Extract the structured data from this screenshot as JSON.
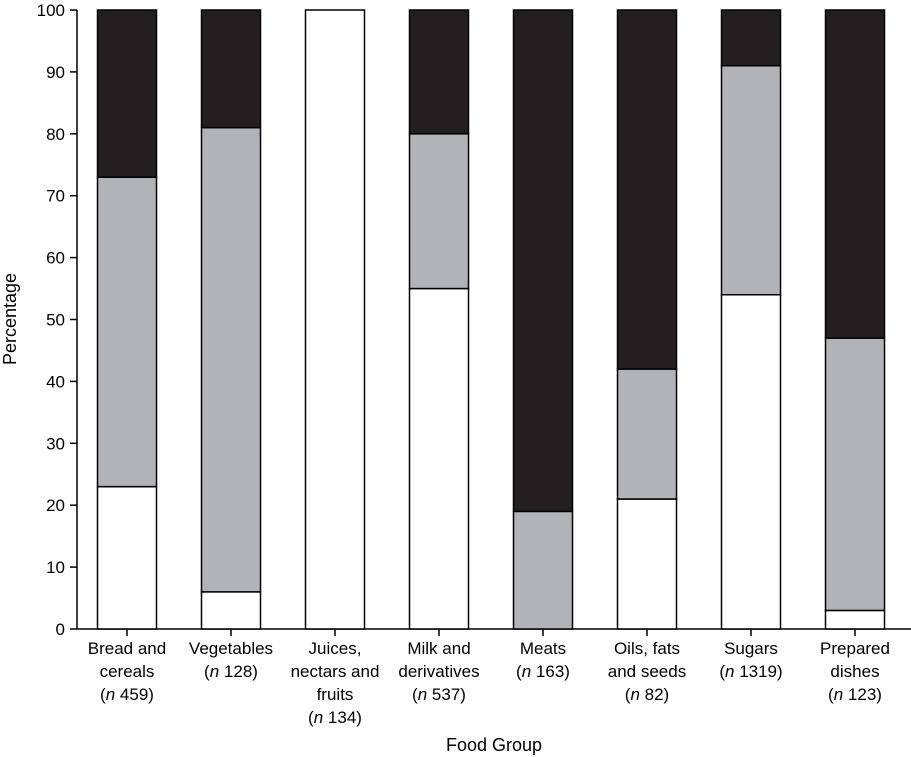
{
  "chart_data": {
    "type": "bar",
    "stacked": true,
    "xlabel": "Food Group",
    "ylabel": "Percentage",
    "ylim": [
      0,
      100
    ],
    "yticks": [
      0,
      10,
      20,
      30,
      40,
      50,
      60,
      70,
      80,
      90,
      100
    ],
    "grid": false,
    "categories": [
      {
        "lines": [
          "Bread and",
          "cereals",
          "(n 459)"
        ]
      },
      {
        "lines": [
          "Vegetables",
          "(n 128)"
        ]
      },
      {
        "lines": [
          "Juices,",
          "nectars and",
          "fruits",
          "(n 134)"
        ]
      },
      {
        "lines": [
          "Milk and",
          "derivatives",
          "(n 537)"
        ]
      },
      {
        "lines": [
          "Meats",
          "(n 163)"
        ]
      },
      {
        "lines": [
          "Oils, fats",
          "and seeds",
          "(n 82)"
        ]
      },
      {
        "lines": [
          "Sugars",
          "(n 1319)"
        ]
      },
      {
        "lines": [
          "Prepared",
          "dishes",
          "(n 123)"
        ]
      }
    ],
    "series": [
      {
        "color": "#ffffff",
        "values": [
          23,
          6,
          100,
          55,
          0,
          21,
          54,
          3
        ]
      },
      {
        "color": "#b2b3b6",
        "values": [
          50,
          75,
          0,
          25,
          19,
          21,
          37,
          44
        ]
      },
      {
        "color": "#231f20",
        "values": [
          27,
          19,
          0,
          20,
          81,
          58,
          9,
          53
        ]
      }
    ]
  }
}
